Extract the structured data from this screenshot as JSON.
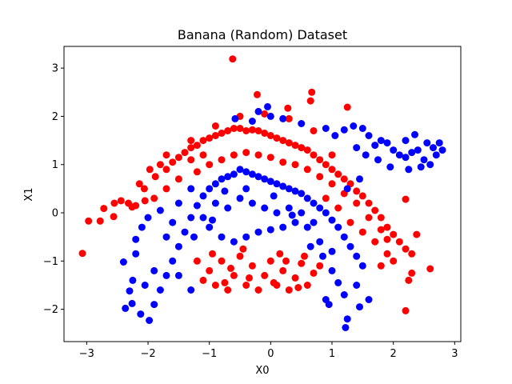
{
  "chart_data": {
    "type": "scatter",
    "title": "Banana (Random) Dataset",
    "xlabel": "X0",
    "ylabel": "X1",
    "xlim": [
      -3.37,
      3.1
    ],
    "ylim": [
      -2.67,
      3.45
    ],
    "xticks": [
      -3,
      -2,
      -1,
      0,
      1,
      2,
      3
    ],
    "yticks": [
      -2,
      -1,
      0,
      1,
      2,
      3
    ],
    "grid": false,
    "legend": "none",
    "series": [
      {
        "color": "#ff0000",
        "description": "red class",
        "points": [
          [
            -0.62,
            3.19
          ],
          [
            0.67,
            2.5
          ],
          [
            -0.22,
            2.45
          ],
          [
            1.25,
            2.19
          ],
          [
            0.65,
            2.32
          ],
          [
            0.28,
            2.17
          ],
          [
            -3.07,
            -0.84
          ],
          [
            -2.97,
            -0.17
          ],
          [
            -2.78,
            -0.17
          ],
          [
            -2.72,
            0.09
          ],
          [
            -2.56,
            -0.08
          ],
          [
            -2.55,
            0.2
          ],
          [
            -2.44,
            0.25
          ],
          [
            -2.32,
            0.2
          ],
          [
            -2.26,
            0.12
          ],
          [
            -2.2,
            0.15
          ],
          [
            -2.14,
            0.6
          ],
          [
            -2.06,
            0.5
          ],
          [
            -2.05,
            0.25
          ],
          [
            -1.97,
            0.9
          ],
          [
            -1.88,
            0.75
          ],
          [
            -1.8,
            1.0
          ],
          [
            -1.7,
            0.9
          ],
          [
            -1.6,
            1.05
          ],
          [
            -1.5,
            1.15
          ],
          [
            -1.4,
            1.25
          ],
          [
            -1.3,
            1.35
          ],
          [
            -1.2,
            1.4
          ],
          [
            -1.1,
            1.5
          ],
          [
            -1.0,
            1.55
          ],
          [
            -0.9,
            1.6
          ],
          [
            -0.8,
            1.65
          ],
          [
            -0.7,
            1.7
          ],
          [
            -0.6,
            1.75
          ],
          [
            -0.5,
            1.75
          ],
          [
            -0.4,
            1.7
          ],
          [
            -0.3,
            1.72
          ],
          [
            -0.2,
            1.7
          ],
          [
            -0.1,
            1.65
          ],
          [
            0.0,
            1.6
          ],
          [
            0.1,
            1.55
          ],
          [
            0.2,
            1.5
          ],
          [
            0.3,
            1.45
          ],
          [
            0.4,
            1.4
          ],
          [
            0.5,
            1.35
          ],
          [
            0.6,
            1.3
          ],
          [
            0.7,
            1.2
          ],
          [
            0.8,
            1.1
          ],
          [
            0.9,
            1.0
          ],
          [
            1.0,
            0.9
          ],
          [
            1.1,
            0.8
          ],
          [
            1.2,
            0.7
          ],
          [
            1.3,
            0.6
          ],
          [
            1.4,
            0.45
          ],
          [
            1.5,
            0.35
          ],
          [
            1.6,
            0.2
          ],
          [
            1.7,
            0.05
          ],
          [
            1.8,
            -0.1
          ],
          [
            1.9,
            -0.3
          ],
          [
            2.0,
            -0.45
          ],
          [
            2.1,
            -0.6
          ],
          [
            2.2,
            -0.75
          ],
          [
            2.3,
            -0.85
          ],
          [
            2.38,
            -0.45
          ],
          [
            2.6,
            -1.16
          ],
          [
            2.25,
            -1.4
          ],
          [
            2.2,
            -2.03
          ],
          [
            2.3,
            -1.25
          ],
          [
            2.2,
            0.28
          ],
          [
            1.9,
            -0.85
          ],
          [
            1.8,
            -1.1
          ],
          [
            2.0,
            -1.0
          ],
          [
            -1.5,
            0.7
          ],
          [
            -1.2,
            0.85
          ],
          [
            -1.0,
            1.0
          ],
          [
            -0.8,
            1.1
          ],
          [
            -0.6,
            1.2
          ],
          [
            -0.4,
            1.25
          ],
          [
            -0.2,
            1.2
          ],
          [
            0.0,
            1.15
          ],
          [
            0.2,
            1.05
          ],
          [
            0.4,
            1.0
          ],
          [
            0.6,
            0.9
          ],
          [
            0.8,
            0.75
          ],
          [
            1.0,
            0.6
          ],
          [
            1.2,
            0.4
          ],
          [
            1.4,
            0.2
          ],
          [
            1.6,
            -0.1
          ],
          [
            1.8,
            -0.35
          ],
          [
            -1.9,
            0.3
          ],
          [
            -1.7,
            0.5
          ],
          [
            -1.3,
            1.1
          ],
          [
            -1.1,
            1.2
          ],
          [
            0.9,
            0.3
          ],
          [
            1.1,
            0.1
          ],
          [
            1.3,
            -0.2
          ],
          [
            1.5,
            -0.4
          ],
          [
            1.7,
            -0.6
          ],
          [
            1.9,
            -0.55
          ],
          [
            -0.9,
            1.8
          ],
          [
            -0.5,
            2.0
          ],
          [
            -0.1,
            2.05
          ],
          [
            0.3,
            1.95
          ],
          [
            0.7,
            1.7
          ],
          [
            1.0,
            1.2
          ],
          [
            -1.3,
            1.5
          ],
          [
            -1.7,
            1.2
          ],
          [
            -1.1,
            -1.4
          ],
          [
            -1.0,
            -1.2
          ],
          [
            -0.9,
            -1.5
          ],
          [
            -0.8,
            -1.0
          ],
          [
            -0.7,
            -1.6
          ],
          [
            -0.6,
            -1.3
          ],
          [
            -0.5,
            -0.9
          ],
          [
            -0.4,
            -1.5
          ],
          [
            -0.3,
            -1.1
          ],
          [
            -0.2,
            -1.6
          ],
          [
            -0.1,
            -1.3
          ],
          [
            0.0,
            -1.0
          ],
          [
            0.1,
            -1.5
          ],
          [
            0.2,
            -1.2
          ],
          [
            0.3,
            -1.6
          ],
          [
            0.4,
            -1.35
          ],
          [
            0.5,
            -1.05
          ],
          [
            0.6,
            -1.5
          ],
          [
            0.7,
            -1.25
          ],
          [
            -1.2,
            -1.0
          ],
          [
            -0.95,
            -0.85
          ],
          [
            -0.45,
            -0.75
          ],
          [
            0.15,
            -0.85
          ],
          [
            0.55,
            -0.9
          ],
          [
            0.8,
            -1.1
          ],
          [
            -0.75,
            -1.45
          ],
          [
            -0.35,
            -1.35
          ],
          [
            0.05,
            -1.45
          ],
          [
            0.45,
            -1.55
          ],
          [
            -0.65,
            -1.15
          ],
          [
            0.25,
            -1.0
          ]
        ]
      },
      {
        "color": "#0000ff",
        "description": "blue class",
        "points": [
          [
            1.22,
            -2.38
          ],
          [
            1.25,
            -2.2
          ],
          [
            -2.12,
            -2.1
          ],
          [
            -1.98,
            -2.23
          ],
          [
            -2.37,
            -1.98
          ],
          [
            -2.26,
            -1.88
          ],
          [
            -2.3,
            -1.62
          ],
          [
            -2.25,
            -1.4
          ],
          [
            -2.4,
            -1.02
          ],
          [
            -2.2,
            -0.85
          ],
          [
            -2.2,
            -0.55
          ],
          [
            -2.1,
            -0.3
          ],
          [
            -2.0,
            -0.1
          ],
          [
            -1.9,
            -1.9
          ],
          [
            -1.8,
            -1.6
          ],
          [
            -1.7,
            -1.3
          ],
          [
            -1.6,
            -1.0
          ],
          [
            -1.5,
            -0.7
          ],
          [
            -1.4,
            -0.4
          ],
          [
            -1.3,
            -0.1
          ],
          [
            -1.2,
            0.15
          ],
          [
            -1.1,
            0.35
          ],
          [
            -1.0,
            0.5
          ],
          [
            -0.9,
            0.6
          ],
          [
            -0.8,
            0.7
          ],
          [
            -0.7,
            0.75
          ],
          [
            -0.6,
            0.8
          ],
          [
            -0.5,
            0.9
          ],
          [
            -0.4,
            0.85
          ],
          [
            -0.3,
            0.8
          ],
          [
            -0.2,
            0.75
          ],
          [
            -0.1,
            0.7
          ],
          [
            0.0,
            0.65
          ],
          [
            0.1,
            0.6
          ],
          [
            0.2,
            0.55
          ],
          [
            0.3,
            0.5
          ],
          [
            0.4,
            0.45
          ],
          [
            0.5,
            0.4
          ],
          [
            0.6,
            0.3
          ],
          [
            0.7,
            0.2
          ],
          [
            0.8,
            0.1
          ],
          [
            0.9,
            0.0
          ],
          [
            1.0,
            -0.15
          ],
          [
            1.1,
            -0.3
          ],
          [
            1.2,
            -0.5
          ],
          [
            1.3,
            -0.7
          ],
          [
            1.4,
            -0.9
          ],
          [
            1.5,
            -1.1
          ],
          [
            1.2,
            -1.7
          ],
          [
            1.1,
            -1.45
          ],
          [
            1.0,
            -1.2
          ],
          [
            1.4,
            -1.5
          ],
          [
            0.9,
            -1.8
          ],
          [
            0.95,
            -1.9
          ],
          [
            1.6,
            -1.8
          ],
          [
            1.45,
            -1.95
          ],
          [
            -1.5,
            0.2
          ],
          [
            -1.3,
            0.5
          ],
          [
            -1.0,
            -0.3
          ],
          [
            -0.8,
            -0.5
          ],
          [
            -0.6,
            -0.6
          ],
          [
            -0.4,
            -0.5
          ],
          [
            -0.2,
            -0.4
          ],
          [
            0.0,
            -0.35
          ],
          [
            0.2,
            -0.3
          ],
          [
            0.4,
            -0.2
          ],
          [
            0.6,
            -0.3
          ],
          [
            -1.7,
            -0.5
          ],
          [
            -1.5,
            -1.3
          ],
          [
            -1.3,
            -1.6
          ],
          [
            -1.9,
            -1.2
          ],
          [
            -2.05,
            -1.5
          ],
          [
            -0.5,
            0.3
          ],
          [
            -0.3,
            0.2
          ],
          [
            -0.1,
            0.1
          ],
          [
            0.1,
            0.0
          ],
          [
            0.3,
            0.1
          ],
          [
            -0.7,
            0.1
          ],
          [
            -0.9,
            0.2
          ],
          [
            -1.1,
            -0.1
          ],
          [
            0.5,
            0.0
          ],
          [
            0.7,
            -0.2
          ],
          [
            0.8,
            -0.6
          ],
          [
            1.0,
            -0.8
          ],
          [
            -0.58,
            1.95
          ],
          [
            -0.3,
            1.9
          ],
          [
            -0.2,
            2.1
          ],
          [
            -0.05,
            2.2
          ],
          [
            0.0,
            2.0
          ],
          [
            0.2,
            1.95
          ],
          [
            0.5,
            1.85
          ],
          [
            0.9,
            1.75
          ],
          [
            1.05,
            1.6
          ],
          [
            1.2,
            1.72
          ],
          [
            1.35,
            1.8
          ],
          [
            1.5,
            1.75
          ],
          [
            1.6,
            1.6
          ],
          [
            1.7,
            1.4
          ],
          [
            1.8,
            1.5
          ],
          [
            1.9,
            1.45
          ],
          [
            2.0,
            1.3
          ],
          [
            2.1,
            1.2
          ],
          [
            2.2,
            1.15
          ],
          [
            2.3,
            1.25
          ],
          [
            2.4,
            1.3
          ],
          [
            2.5,
            1.1
          ],
          [
            2.6,
            1.0
          ],
          [
            2.7,
            1.2
          ],
          [
            2.75,
            1.45
          ],
          [
            2.8,
            1.3
          ],
          [
            2.35,
            1.62
          ],
          [
            2.2,
            1.5
          ],
          [
            2.55,
            1.45
          ],
          [
            2.45,
            0.95
          ],
          [
            2.65,
            1.35
          ],
          [
            1.55,
            1.2
          ],
          [
            1.4,
            1.35
          ],
          [
            1.75,
            1.1
          ],
          [
            1.95,
            0.95
          ],
          [
            2.25,
            0.9
          ],
          [
            1.45,
            0.7
          ],
          [
            1.25,
            0.5
          ],
          [
            -0.4,
            0.5
          ],
          [
            0.05,
            0.35
          ],
          [
            0.35,
            -0.05
          ],
          [
            -0.75,
            0.45
          ],
          [
            -1.25,
            -0.5
          ],
          [
            -0.95,
            -0.15
          ],
          [
            -1.6,
            -0.2
          ],
          [
            -1.8,
            0.05
          ],
          [
            0.65,
            -0.7
          ],
          [
            0.85,
            -0.9
          ]
        ]
      }
    ]
  }
}
